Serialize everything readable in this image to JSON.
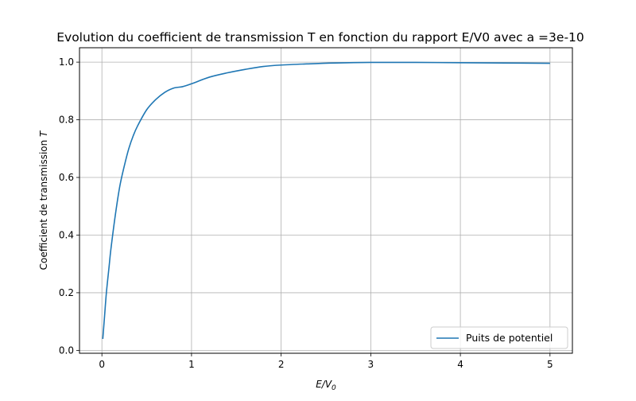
{
  "chart_data": {
    "type": "line",
    "title": "Evolution du coefficient de transmission T en fonction du rapport E/V0 avec a =3e-10",
    "xlabel_main": "E/V",
    "xlabel_sub": "0",
    "ylabel_main": "Coefficient de transmission ",
    "ylabel_var": "T",
    "xlim": [
      -0.25,
      5.25
    ],
    "ylim": [
      -0.01,
      1.05
    ],
    "xticks": [
      0,
      1,
      2,
      3,
      4,
      5
    ],
    "xtick_labels": [
      "0",
      "1",
      "2",
      "3",
      "4",
      "5"
    ],
    "yticks": [
      0.0,
      0.2,
      0.4,
      0.6,
      0.8,
      1.0
    ],
    "ytick_labels": [
      "0.0",
      "0.2",
      "0.4",
      "0.6",
      "0.8",
      "1.0"
    ],
    "grid": true,
    "legend_position": "bottom-right",
    "series": [
      {
        "name": "Puits de potentiel",
        "color": "#1f77b4",
        "x": [
          0.01,
          0.03,
          0.05,
          0.08,
          0.1,
          0.15,
          0.2,
          0.25,
          0.3,
          0.35,
          0.4,
          0.5,
          0.6,
          0.7,
          0.8,
          0.9,
          1.0,
          1.2,
          1.4,
          1.6,
          1.8,
          2.0,
          2.3,
          2.6,
          3.0,
          3.5,
          4.0,
          4.5,
          5.0
        ],
        "y": [
          0.04,
          0.12,
          0.2,
          0.29,
          0.35,
          0.47,
          0.57,
          0.64,
          0.7,
          0.745,
          0.78,
          0.835,
          0.87,
          0.895,
          0.91,
          0.915,
          0.925,
          0.948,
          0.963,
          0.975,
          0.985,
          0.99,
          0.994,
          0.997,
          0.999,
          0.999,
          0.998,
          0.997,
          0.996
        ]
      }
    ]
  }
}
